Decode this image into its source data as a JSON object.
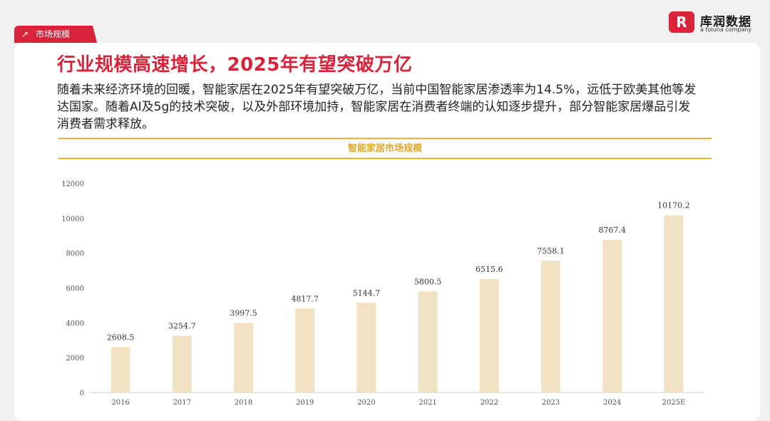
{
  "tag": {
    "label": "市场规模",
    "icon": "arrow-up-right-icon"
  },
  "logo": {
    "mark": "R",
    "name_cn": "库润数据",
    "name_en": "a toluna company"
  },
  "title": "行业规模高速增长，2025年有望突破万亿",
  "description": "随着未来经济环境的回暖，智能家居在2025年有望突破万亿，当前中国智能家居渗透率为14.5%，远低于欧美其他等发达国家。随着AI及5g的技术突破，以及外部环境加持，智能家居在消费者终端的认知逐步提升，部分智能家居爆品引发消费者需求释放。",
  "colors": {
    "accent": "#d7243a",
    "gold": "#e8b52c",
    "bar": "#f2e2c4"
  },
  "chart_data": {
    "type": "bar",
    "title": "智能家居市场规模",
    "categories": [
      "2016",
      "2017",
      "2018",
      "2019",
      "2020",
      "2021",
      "2022",
      "2023",
      "2024",
      "2025E"
    ],
    "values": [
      2608.5,
      3254.7,
      3997.5,
      4817.7,
      5144.7,
      5800.5,
      6515.6,
      7558.1,
      8767.4,
      10170.2
    ],
    "value_labels": [
      "2608.5",
      "3254.7",
      "3997.5",
      "4817.7",
      "5144.7",
      "5800.5",
      "6515.6",
      "7558.1",
      "8767.4",
      "10170.2"
    ],
    "yticks": [
      "0",
      "2000",
      "4000",
      "6000",
      "8000",
      "10000",
      "12000"
    ],
    "ylim": [
      0,
      12000
    ],
    "grid": false,
    "legend": "none"
  }
}
